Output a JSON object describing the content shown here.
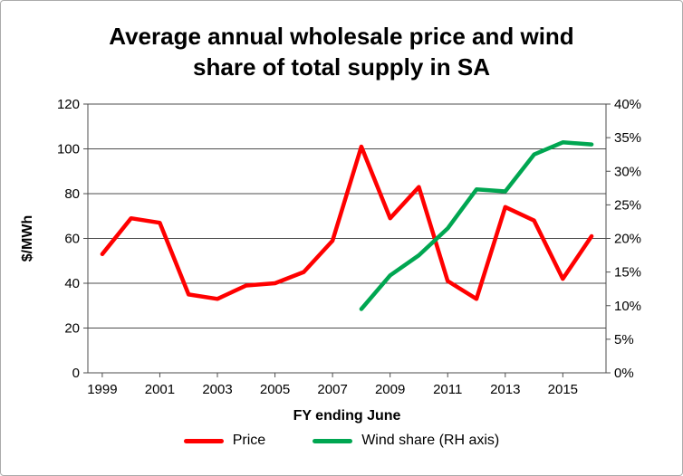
{
  "chart_data": {
    "type": "line",
    "title": "Average annual wholesale price and wind share of total supply in SA",
    "title_lines": [
      "Average annual wholesale price and wind",
      "share of total supply in SA"
    ],
    "xlabel": "FY ending June",
    "ylabel": "$/MWh",
    "grid": "horizontal",
    "legend_position": "bottom",
    "x": [
      1999,
      2000,
      2001,
      2002,
      2003,
      2004,
      2005,
      2006,
      2007,
      2008,
      2009,
      2010,
      2011,
      2012,
      2013,
      2014,
      2015,
      2016
    ],
    "x_tick_labels": [
      "1999",
      "2001",
      "2003",
      "2005",
      "2007",
      "2009",
      "2011",
      "2013",
      "2015"
    ],
    "x_tick_indices": [
      0,
      2,
      4,
      6,
      8,
      10,
      12,
      14,
      16
    ],
    "left_axis": {
      "min": 0,
      "max": 120,
      "step": 20,
      "tick_labels": [
        "0",
        "20",
        "40",
        "60",
        "80",
        "100",
        "120"
      ]
    },
    "right_axis": {
      "min": 0,
      "max": 40,
      "step": 5,
      "tick_labels": [
        "0%",
        "5%",
        "10%",
        "15%",
        "20%",
        "25%",
        "30%",
        "35%",
        "40%"
      ]
    },
    "series": [
      {
        "name": "Price",
        "axis": "left",
        "color": "#FF0000",
        "values": [
          53,
          69,
          67,
          35,
          33,
          39,
          40,
          45,
          59,
          101,
          69,
          83,
          41,
          33,
          74,
          68,
          42,
          61
        ]
      },
      {
        "name": "Wind share (RH axis)",
        "axis": "right",
        "color": "#00A651",
        "values": [
          null,
          null,
          null,
          null,
          null,
          null,
          null,
          null,
          null,
          9.5,
          14.5,
          17.5,
          21.5,
          27.3,
          27,
          32.5,
          34.3,
          34
        ]
      }
    ],
    "line_color_hex": {
      "price": "#FF0000",
      "wind": "#00A651"
    },
    "gridline_color": "#4d4d4d"
  }
}
